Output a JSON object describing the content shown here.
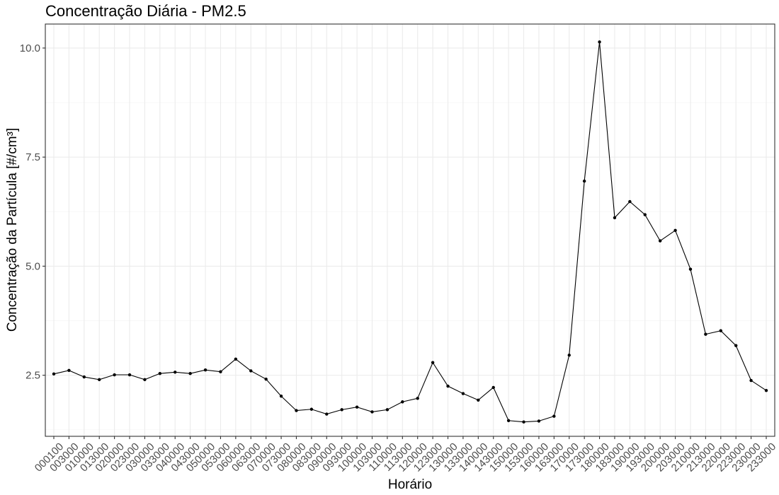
{
  "chart_data": {
    "type": "line",
    "title": "Concentração Diária - PM2.5",
    "xlabel": "Horário",
    "ylabel": "Concentração da Partícula [#/cm³]",
    "ylim": [
      1.1,
      10.55
    ],
    "yticks": [
      2.5,
      5.0,
      7.5,
      10.0
    ],
    "ytick_labels": [
      "2.5",
      "5.0",
      "7.5",
      "10.0"
    ],
    "grid": true,
    "legend": "none",
    "x": [
      "000100",
      "003000",
      "010000",
      "013000",
      "020000",
      "023000",
      "030000",
      "033000",
      "040000",
      "043000",
      "050000",
      "053000",
      "060000",
      "063000",
      "070000",
      "073000",
      "080000",
      "083000",
      "090000",
      "093000",
      "100000",
      "103000",
      "110000",
      "113000",
      "120000",
      "123000",
      "130000",
      "133000",
      "140000",
      "143000",
      "150000",
      "153000",
      "160000",
      "163000",
      "170000",
      "173000",
      "180000",
      "183000",
      "190000",
      "193000",
      "200000",
      "203000",
      "210000",
      "213000",
      "220000",
      "223000",
      "230000",
      "233000"
    ],
    "series": [
      {
        "values": [
          2.53,
          2.61,
          2.46,
          2.4,
          2.51,
          2.51,
          2.4,
          2.54,
          2.57,
          2.54,
          2.62,
          2.58,
          2.87,
          2.6,
          2.41,
          2.02,
          1.69,
          1.72,
          1.61,
          1.71,
          1.77,
          1.66,
          1.71,
          1.89,
          1.97,
          2.79,
          2.25,
          2.08,
          1.93,
          2.22,
          1.46,
          1.43,
          1.45,
          1.56,
          2.96,
          6.95,
          10.14,
          6.11,
          6.48,
          6.18,
          5.58,
          5.82,
          4.93,
          3.44,
          3.52,
          3.18,
          2.38,
          2.15
        ]
      }
    ]
  }
}
